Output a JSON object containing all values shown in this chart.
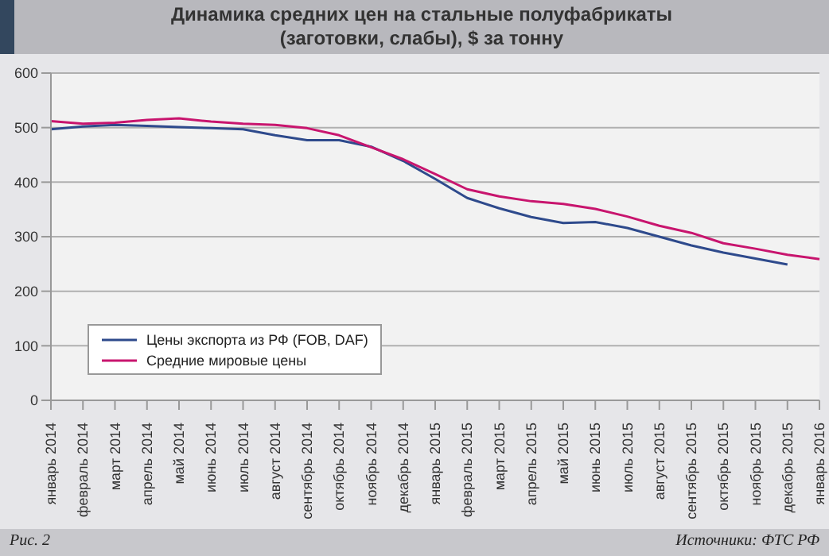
{
  "chart_data": {
    "type": "line",
    "title": "Динамика средних цен на стальные полуфабрикаты\n(заготовки, слабы), $ за тонну",
    "categories": [
      "январь 2014",
      "февраль 2014",
      "март 2014",
      "апрель 2014",
      "май 2014",
      "июнь 2014",
      "июль 2014",
      "август 2014",
      "сентябрь 2014",
      "октябрь 2014",
      "ноябрь 2014",
      "декабрь 2014",
      "январь 2015",
      "февраль 2015",
      "март 2015",
      "апрель 2015",
      "май 2015",
      "июнь 2015",
      "июль 2015",
      "август 2015",
      "сентябрь 2015",
      "октябрь 2015",
      "ноябрь 2015",
      "декабрь 2015",
      "январь 2016"
    ],
    "series": [
      {
        "name": "Цены экспорта из РФ (FOB, DAF)",
        "color": "#2e4a8c",
        "values": [
          497,
          502,
          505,
          503,
          501,
          499,
          497,
          486,
          477,
          477,
          465,
          439,
          406,
          371,
          352,
          336,
          325,
          327,
          316,
          300,
          284,
          271,
          260,
          249,
          null
        ]
      },
      {
        "name": "Средние мировые цены",
        "color": "#c8156e",
        "values": [
          512,
          507,
          509,
          514,
          517,
          511,
          507,
          505,
          499,
          486,
          464,
          442,
          415,
          387,
          374,
          365,
          360,
          351,
          337,
          320,
          307,
          288,
          278,
          267,
          259
        ]
      }
    ],
    "ylim": [
      0,
      600
    ],
    "yticks": [
      0,
      100,
      200,
      300,
      400,
      500,
      600
    ],
    "grid": "y",
    "legend": "bottom left",
    "marker": "none",
    "line_style": "solid",
    "annotations": [
      "Рис. 2",
      "Источники: ФТС РФ"
    ]
  }
}
